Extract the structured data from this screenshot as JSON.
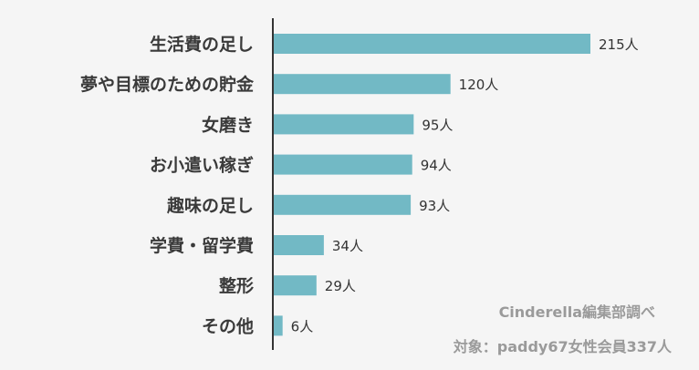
{
  "chart_data": {
    "type": "bar",
    "orientation": "horizontal",
    "categories": [
      "生活費の足し",
      "夢や目標のための貯金",
      "女磨き",
      "お小遣い稼ぎ",
      "趣味の足し",
      "学費・留学費",
      "整形",
      "その他"
    ],
    "values": [
      215,
      120,
      95,
      94,
      93,
      34,
      29,
      6
    ],
    "value_labels": [
      "215人",
      "120人",
      "95人",
      "94人",
      "93人",
      "34人",
      "29人",
      "6人"
    ],
    "unit": "人",
    "xlim": [
      0,
      250
    ],
    "grid": false,
    "colors": {
      "bar": "#72b9c5",
      "background": "#f5f5f5",
      "axis": "#333333"
    }
  },
  "notes": {
    "source": "Cinderella編集部調べ",
    "target": "対象：paddy67女性会員337人"
  }
}
